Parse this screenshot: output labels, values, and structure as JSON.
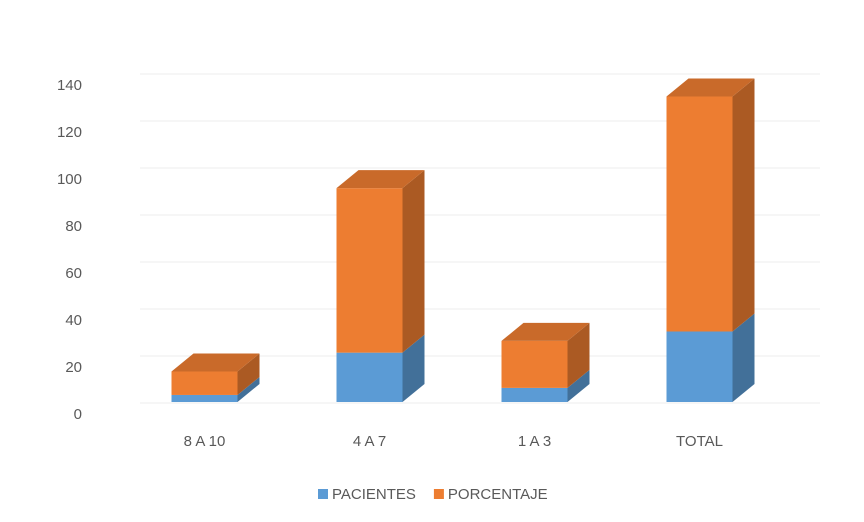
{
  "chart_data": {
    "type": "bar3d_stacked",
    "categories": [
      "8 A 10",
      "4 A 7",
      "1 A 3",
      "TOTAL"
    ],
    "series": [
      {
        "name": "PACIENTES",
        "color": "#5b9bd5",
        "values": [
          3,
          21,
          6,
          30
        ]
      },
      {
        "name": "PORCENTAJE",
        "color": "#ed7d31",
        "values": [
          10,
          70,
          20,
          100
        ]
      }
    ],
    "ylim": [
      0,
      140
    ],
    "yticks": [
      0,
      20,
      40,
      60,
      80,
      100,
      120,
      140
    ],
    "grid": true,
    "legend": "bottom"
  }
}
